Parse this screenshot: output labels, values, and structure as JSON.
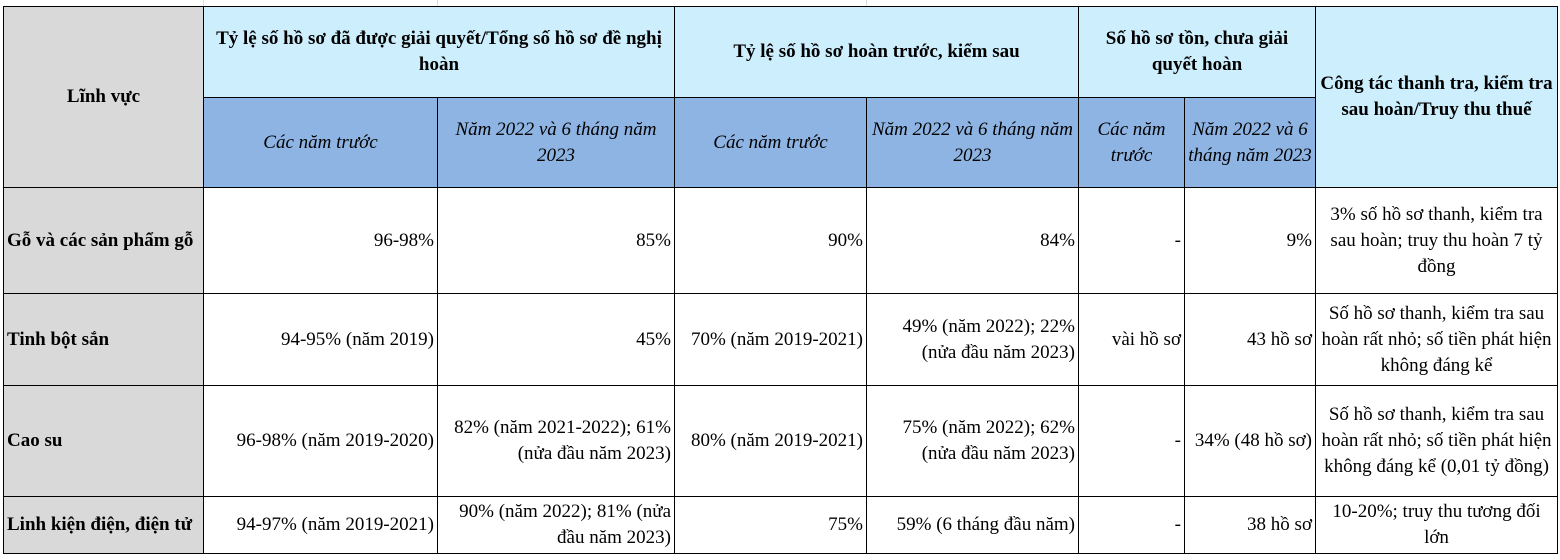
{
  "header": {
    "field": "Lĩnh vực",
    "group1": "Tỷ lệ số hồ sơ đã được giải quyết/Tổng số hồ sơ đề nghị hoàn",
    "group2": "Tỷ lệ số hồ sơ hoàn trước, kiểm sau",
    "group3": "Số hồ sơ tồn, chưa giải quyết hoàn",
    "group4": "Công tác thanh tra, kiểm tra sau hoàn/Truy thu thuế",
    "sub_prev": "Các năm trước",
    "sub_2022": "Năm 2022 và 6 tháng năm 2023"
  },
  "rows": [
    {
      "field": "Gỗ và các sản phẩm gỗ",
      "c1": "96-98%",
      "c2": "85%",
      "c3": "90%",
      "c4": "84%",
      "c5": "-",
      "c6": "9%",
      "c7": "3% số hồ sơ thanh, kiểm tra sau hoàn; truy thu hoàn 7 tỷ đồng"
    },
    {
      "field": "Tinh bột sắn",
      "c1": "94-95% (năm 2019)",
      "c2": "45%",
      "c3": "70% (năm 2019-2021)",
      "c4": "49% (năm 2022); 22% (nửa đầu năm 2023)",
      "c5": "vài hồ sơ",
      "c6": "43 hồ sơ",
      "c7": "Số hồ sơ thanh, kiểm tra sau hoàn rất nhỏ; số tiền phát hiện không đáng kể"
    },
    {
      "field": "Cao su",
      "c1": "96-98% (năm 2019-2020)",
      "c2": "82% (năm 2021-2022); 61% (nửa đầu năm 2023)",
      "c3": "80% (năm 2019-2021)",
      "c4": "75% (năm 2022); 62% (nửa đầu năm 2023)",
      "c5": "-",
      "c6": "34% (48 hồ sơ)",
      "c7": "Số hồ sơ thanh, kiểm tra sau hoàn rất nhỏ; số tiền phát hiện không đáng kể (0,01 tỷ đồng)"
    },
    {
      "field": "Linh kiện điện, điện tử",
      "c1": "94-97% (năm 2019-2021)",
      "c2": "90% (năm 2022); 81% (nửa đầu năm 2023)",
      "c3": "75%",
      "c4": "59% (6 tháng đầu năm)",
      "c5": "-",
      "c6": "38 hồ sơ",
      "c7": "10-20%; truy thu tương đối lớn"
    }
  ]
}
